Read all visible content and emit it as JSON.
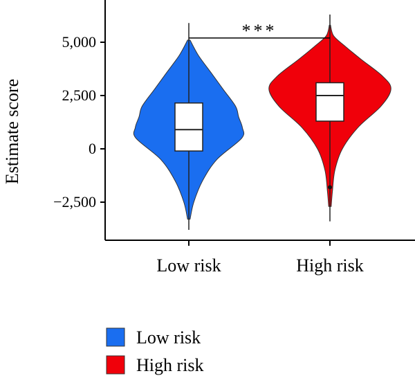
{
  "chart_data": {
    "type": "violin",
    "ylabel": "Estimate score",
    "ylim": [
      -3400,
      6000
    ],
    "yticks": [
      5000,
      2500,
      0,
      -2500
    ],
    "ytick_labels": [
      "5,000",
      "2,500",
      "0",
      "−2,500"
    ],
    "categories": [
      "Low risk",
      "High risk"
    ],
    "series": [
      {
        "name": "Low risk",
        "color": "#1a6ef0",
        "box": {
          "q1": -100,
          "median": 900,
          "q3": 2150,
          "whisker_low": -3800,
          "whisker_high": 5900
        },
        "density": [
          [
            -3300,
            0.02
          ],
          [
            -2500,
            0.08
          ],
          [
            -1500,
            0.22
          ],
          [
            -500,
            0.45
          ],
          [
            500,
            0.85
          ],
          [
            1000,
            0.86
          ],
          [
            1500,
            0.8
          ],
          [
            2000,
            0.75
          ],
          [
            2800,
            0.55
          ],
          [
            3600,
            0.35
          ],
          [
            4400,
            0.15
          ],
          [
            5100,
            0.02
          ]
        ]
      },
      {
        "name": "High risk",
        "color": "#f0000a",
        "box": {
          "q1": 1300,
          "median": 2500,
          "q3": 3100,
          "whisker_low": -3400,
          "whisker_high": 6300
        },
        "outliers": [
          -1800
        ],
        "density": [
          [
            -2700,
            0.02
          ],
          [
            -2000,
            0.04
          ],
          [
            -1000,
            0.08
          ],
          [
            0,
            0.2
          ],
          [
            1000,
            0.45
          ],
          [
            2000,
            0.82
          ],
          [
            2800,
            0.98
          ],
          [
            3400,
            0.85
          ],
          [
            4200,
            0.5
          ],
          [
            4800,
            0.25
          ],
          [
            5300,
            0.06
          ],
          [
            5800,
            0.01
          ]
        ]
      }
    ],
    "significance": {
      "label": "***",
      "y": 5200
    },
    "legend": {
      "position": "bottom-left",
      "entries": [
        "Low risk",
        "High risk"
      ]
    }
  }
}
